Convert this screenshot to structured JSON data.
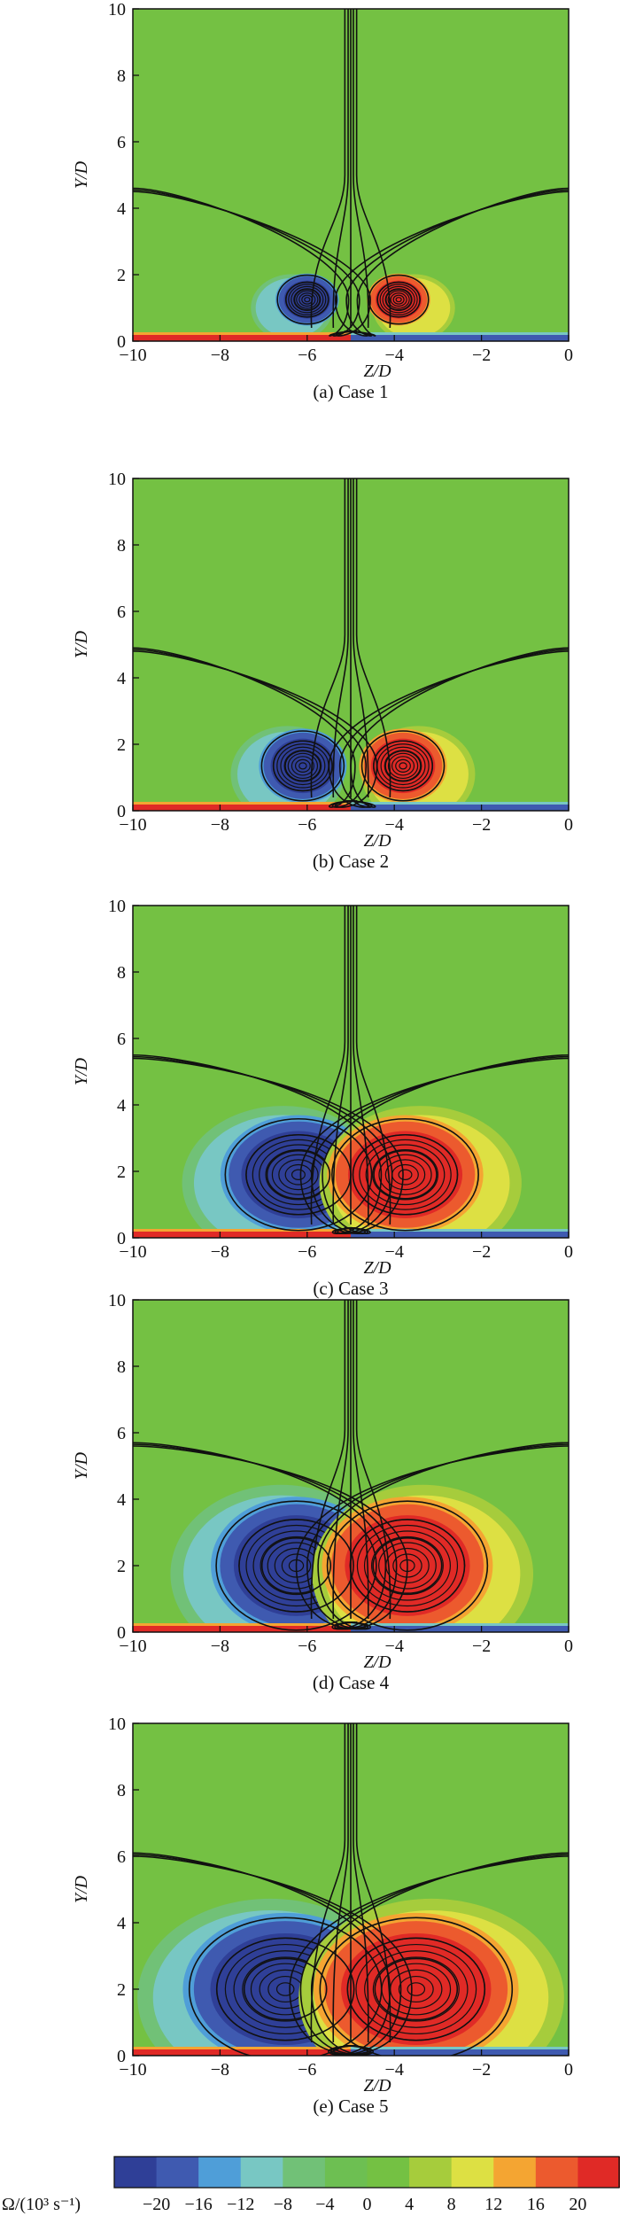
{
  "chart_data": [
    {
      "type": "heatmap",
      "caption": "(a) Case 1",
      "xlabel": "Z/D",
      "ylabel": "Y/D",
      "xlim": [
        -10,
        0
      ],
      "ylim": [
        0,
        10
      ],
      "xticks": [
        -10,
        -8,
        -6,
        -4,
        -2,
        0
      ],
      "yticks": [
        0,
        2,
        4,
        6,
        8,
        10
      ],
      "vortices": [
        {
          "z": -6.0,
          "y": 1.25,
          "omega": -20,
          "rx": 0.65,
          "ry": 0.7
        },
        {
          "z": -3.9,
          "y": 1.25,
          "omega": 20,
          "rx": 0.65,
          "ry": 0.7
        }
      ],
      "separatrix_y": 4.6
    },
    {
      "type": "heatmap",
      "caption": "(b) Case 2",
      "xlabel": "Z/D",
      "ylabel": "Y/D",
      "xlim": [
        -10,
        0
      ],
      "ylim": [
        0,
        10
      ],
      "xticks": [
        -10,
        -8,
        -6,
        -4,
        -2,
        0
      ],
      "yticks": [
        0,
        2,
        4,
        6,
        8,
        10
      ],
      "vortices": [
        {
          "z": -6.1,
          "y": 1.35,
          "omega": -20,
          "rx": 0.9,
          "ry": 1.0
        },
        {
          "z": -3.8,
          "y": 1.35,
          "omega": 20,
          "rx": 0.9,
          "ry": 1.0
        }
      ],
      "separatrix_y": 4.9
    },
    {
      "type": "heatmap",
      "caption": "(c) Case 3",
      "xlabel": "Z/D",
      "ylabel": "Y/D",
      "xlim": [
        -10,
        0
      ],
      "ylim": [
        0,
        10
      ],
      "xticks": [
        -10,
        -8,
        -6,
        -4,
        -2,
        0
      ],
      "yticks": [
        0,
        2,
        4,
        6,
        8,
        10
      ],
      "vortices": [
        {
          "z": -6.2,
          "y": 1.9,
          "omega": -20,
          "rx": 1.6,
          "ry": 1.6
        },
        {
          "z": -3.75,
          "y": 1.9,
          "omega": 20,
          "rx": 1.6,
          "ry": 1.6
        }
      ],
      "separatrix_y": 5.5
    },
    {
      "type": "heatmap",
      "caption": "(d) Case 4",
      "xlabel": "Z/D",
      "ylabel": "Y/D",
      "xlim": [
        -10,
        0
      ],
      "ylim": [
        0,
        10
      ],
      "xticks": [
        -10,
        -8,
        -6,
        -4,
        -2,
        0
      ],
      "yticks": [
        0,
        2,
        4,
        6,
        8,
        10
      ],
      "vortices": [
        {
          "z": -6.25,
          "y": 2.0,
          "omega": -20,
          "rx": 1.75,
          "ry": 1.85
        },
        {
          "z": -3.7,
          "y": 2.0,
          "omega": 20,
          "rx": 1.75,
          "ry": 1.85
        }
      ],
      "separatrix_y": 5.7
    },
    {
      "type": "heatmap",
      "caption": "(e) Case 5",
      "xlabel": "Z/D",
      "ylabel": "Y/D",
      "xlim": [
        -10,
        0
      ],
      "ylim": [
        0,
        10
      ],
      "xticks": [
        -10,
        -8,
        -6,
        -4,
        -2,
        0
      ],
      "yticks": [
        0,
        2,
        4,
        6,
        8,
        10
      ],
      "vortices": [
        {
          "z": -6.5,
          "y": 2.0,
          "omega": -20,
          "rx": 2.1,
          "ry": 2.05
        },
        {
          "z": -3.5,
          "y": 2.0,
          "omega": 20,
          "rx": 2.1,
          "ry": 2.05
        }
      ],
      "separatrix_y": 6.1
    }
  ],
  "colorbar": {
    "label": "Ω/(10³ s⁻¹)",
    "ticks": [
      -20,
      -16,
      -12,
      -8,
      -4,
      0,
      4,
      8,
      12,
      16,
      20
    ],
    "colors": [
      "#2f3f97",
      "#3f5ab0",
      "#4f9ed8",
      "#78c7c3",
      "#71c177",
      "#6dbf52",
      "#74c143",
      "#a6cc3c",
      "#dde043",
      "#f4a532",
      "#ec5a2e",
      "#e02a26"
    ]
  }
}
